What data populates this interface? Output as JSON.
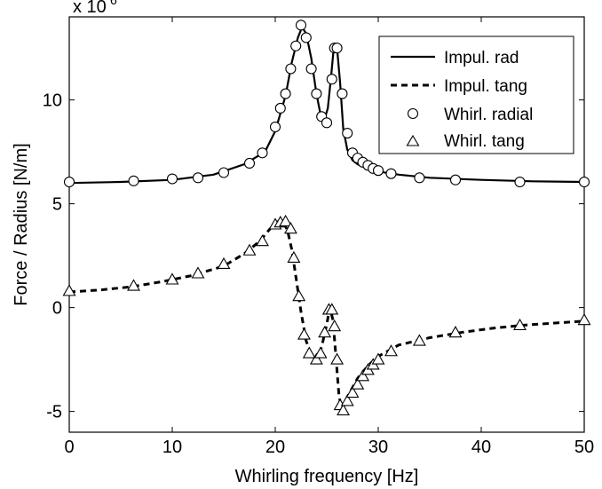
{
  "chart_data": {
    "type": "line",
    "xlabel": "Whirling frequency [Hz]",
    "ylabel": "Force / Radius [N/m]",
    "xlim": [
      0,
      50
    ],
    "ylim": [
      -6,
      14
    ],
    "y_multiplier_label": "x 10",
    "y_multiplier_exponent": "6",
    "x_ticks": [
      0,
      10,
      20,
      30,
      40,
      50
    ],
    "y_ticks": [
      -5,
      0,
      5,
      10
    ],
    "grid": false,
    "legend_position": "top-right",
    "series": [
      {
        "name": "Impul. rad",
        "style": "solid",
        "x": [
          0,
          5,
          10,
          14,
          17,
          19,
          20,
          21,
          21.6,
          22.2,
          22.6,
          23.0,
          23.5,
          24.0,
          24.4,
          24.8,
          25.1,
          25.4,
          25.7,
          26.0,
          26.3,
          26.6,
          27.0,
          27.5,
          28,
          29,
          30,
          32,
          35,
          40,
          45,
          50
        ],
        "y": [
          6.0,
          6.05,
          6.15,
          6.4,
          6.9,
          7.5,
          8.5,
          10.2,
          11.8,
          13.0,
          13.5,
          13.2,
          12.0,
          10.3,
          9.3,
          9.1,
          9.6,
          11.0,
          12.6,
          12.5,
          10.8,
          8.6,
          7.6,
          7.1,
          6.9,
          6.7,
          6.55,
          6.4,
          6.25,
          6.15,
          6.08,
          6.05
        ]
      },
      {
        "name": "Impul. tang",
        "style": "dashed",
        "x": [
          0,
          3,
          6,
          9,
          12,
          15,
          17,
          18.5,
          19.5,
          20.3,
          20.8,
          21.2,
          21.6,
          22.0,
          22.5,
          23.0,
          23.5,
          24.0,
          24.5,
          25.0,
          25.3,
          25.6,
          25.9,
          26.2,
          26.5,
          27.0,
          28,
          29,
          30,
          32,
          35,
          38,
          41,
          44,
          47,
          50
        ],
        "y": [
          0.75,
          0.85,
          1.0,
          1.25,
          1.55,
          2.0,
          2.6,
          3.2,
          3.8,
          4.15,
          4.1,
          3.7,
          2.8,
          1.5,
          -0.2,
          -1.6,
          -2.3,
          -2.5,
          -1.9,
          -0.8,
          0.0,
          -0.6,
          -2.4,
          -4.3,
          -4.9,
          -4.3,
          -3.4,
          -2.8,
          -2.35,
          -1.8,
          -1.45,
          -1.2,
          -1.0,
          -0.85,
          -0.75,
          -0.65
        ]
      },
      {
        "name": "Whirl. radial",
        "marker": "circle",
        "x": [
          0,
          6.25,
          10,
          12.5,
          15,
          17.5,
          18.75,
          20,
          20.5,
          21,
          21.5,
          22,
          22.5,
          23,
          23.5,
          24,
          24.5,
          25,
          25.5,
          25.75,
          26,
          26.5,
          27,
          27.5,
          28,
          28.5,
          29,
          29.5,
          30,
          31.25,
          34,
          37.5,
          43.75,
          50
        ],
        "y": [
          6.05,
          6.1,
          6.2,
          6.25,
          6.5,
          6.95,
          7.45,
          8.7,
          9.6,
          10.3,
          11.5,
          12.6,
          13.6,
          13.0,
          11.5,
          10.3,
          9.2,
          8.9,
          11.0,
          12.5,
          12.5,
          10.3,
          8.4,
          7.45,
          7.2,
          7.0,
          6.85,
          6.7,
          6.6,
          6.45,
          6.25,
          6.15,
          6.05,
          6.05
        ]
      },
      {
        "name": "Whirl. tang",
        "marker": "triangle",
        "x": [
          0,
          6.25,
          10,
          12.5,
          15,
          17.5,
          18.75,
          20,
          20.5,
          21,
          21.5,
          21.8,
          22.3,
          22.8,
          23.3,
          24,
          24.4,
          24.8,
          25.2,
          25.5,
          25.75,
          26,
          26.3,
          26.6,
          27,
          27.5,
          28,
          28.5,
          29,
          29.5,
          30,
          31.25,
          34,
          37.5,
          43.75,
          50
        ],
        "y": [
          0.8,
          1.05,
          1.35,
          1.65,
          2.1,
          2.75,
          3.2,
          4.0,
          4.1,
          4.15,
          3.8,
          2.4,
          0.55,
          -1.3,
          -2.2,
          -2.5,
          -2.2,
          -1.2,
          -0.1,
          -0.1,
          -0.9,
          -2.5,
          -4.7,
          -4.95,
          -4.5,
          -4.1,
          -3.7,
          -3.3,
          -3.0,
          -2.75,
          -2.5,
          -2.1,
          -1.6,
          -1.2,
          -0.85,
          -0.6
        ]
      }
    ]
  }
}
